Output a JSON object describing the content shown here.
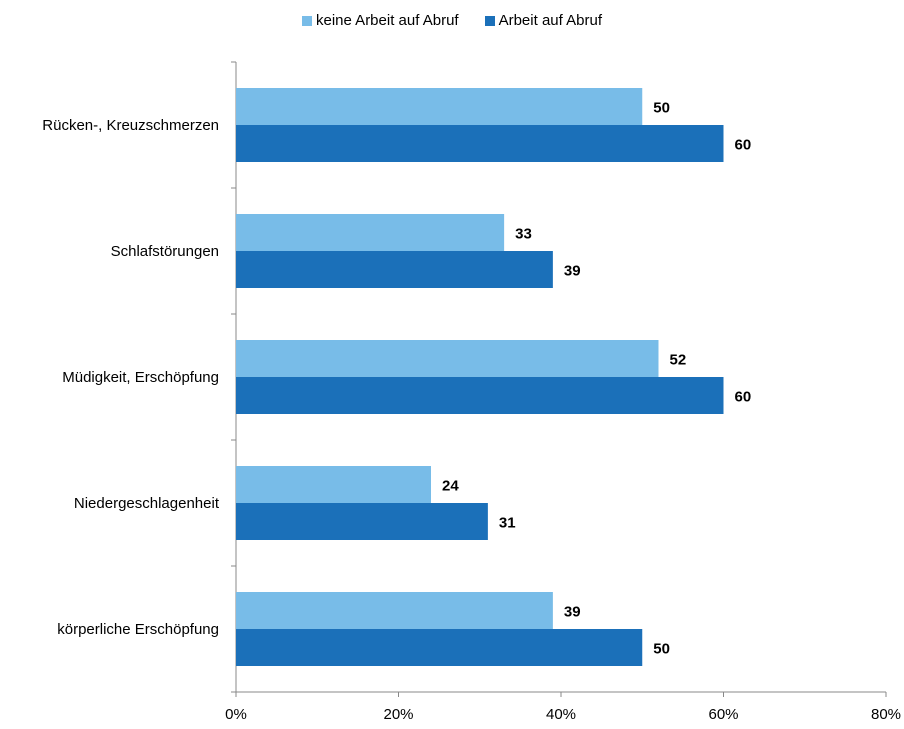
{
  "chart_data": {
    "type": "bar",
    "orientation": "horizontal",
    "categories": [
      "Rücken-, Kreuzschmerzen",
      "Schlafstörungen",
      "Müdigkeit, Erschöpfung",
      "Niedergeschlagenheit",
      "körperliche Erschöpfung"
    ],
    "series": [
      {
        "name": "keine Arbeit auf Abruf",
        "color": "#78bce8",
        "values": [
          50,
          33,
          52,
          24,
          39
        ]
      },
      {
        "name": "Arbeit auf Abruf",
        "color": "#1b70b9",
        "values": [
          60,
          39,
          60,
          31,
          50
        ]
      }
    ],
    "xlim": [
      0,
      80
    ],
    "xticks": [
      "0%",
      "20%",
      "40%",
      "60%",
      "80%"
    ],
    "legend_position": "top",
    "grid": false
  }
}
